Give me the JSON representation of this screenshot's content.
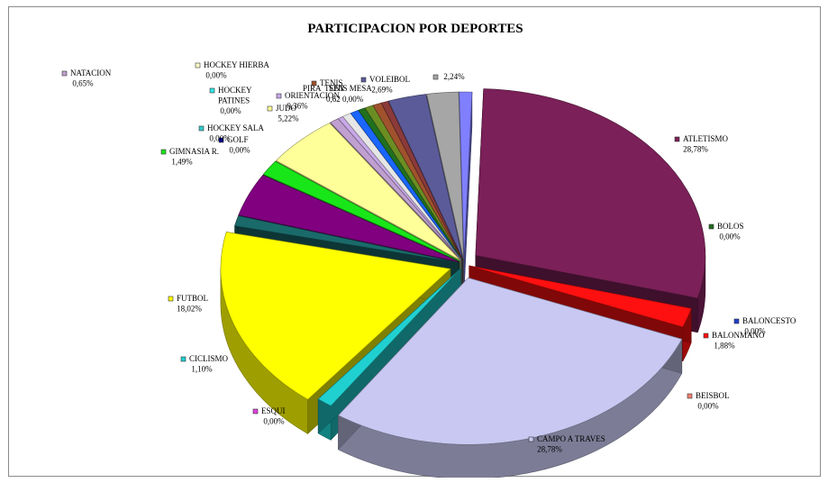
{
  "chart_data": {
    "type": "pie",
    "title": "PARTICIPACION POR DEPORTES",
    "slices": [
      {
        "label": "ATLETISMO",
        "value": 28.78,
        "value_label": "28,78%",
        "color": "#7b2058"
      },
      {
        "label": "BOLOS",
        "value": 0.0,
        "value_label": "0,00%",
        "color": "#1f6b1f"
      },
      {
        "label": "BALONCESTO",
        "value": 0.0,
        "value_label": "0,00%",
        "color": "#1f3fcc"
      },
      {
        "label": "BALONMANO",
        "value": 1.88,
        "value_label": "1,88%",
        "color": "#ff1010"
      },
      {
        "label": "BEISBOL",
        "value": 0.0,
        "value_label": "0,00%",
        "color": "#f08070"
      },
      {
        "label": "CAMPO A TRAVES",
        "value": 28.78,
        "value_label": "28,78%",
        "color": "#c8c8f2"
      },
      {
        "label": "ESQUI",
        "value": 0.0,
        "value_label": "0,00%",
        "color": "#e040e0"
      },
      {
        "label": "CICLISMO",
        "value": 1.1,
        "value_label": "1,10%",
        "color": "#20d0d0"
      },
      {
        "label": "FUTBOL",
        "value": 18.02,
        "value_label": "18,02%",
        "color": "#ffff00"
      },
      {
        "label": "",
        "value": 1.0,
        "value_label": "",
        "color": "#1a6a6a"
      },
      {
        "label": "",
        "value": 4.2,
        "value_label": "",
        "color": "#800080"
      },
      {
        "label": "GIMNASIA R.",
        "value": 1.49,
        "value_label": "1,49%",
        "color": "#19e619"
      },
      {
        "label": "GOLF",
        "value": 0.0,
        "value_label": "0,00%",
        "color": "#0000a0"
      },
      {
        "label": "HOCKEY SALA",
        "value": 0.0,
        "value_label": "0,00%",
        "color": "#33cccc"
      },
      {
        "label": "JUDO",
        "value": 5.22,
        "value_label": "5,22%",
        "color": "#ffff99"
      },
      {
        "label": "HOCKEY PATINES",
        "value": 0.0,
        "value_label": "0,00%",
        "color": "#33e6e6"
      },
      {
        "label": "HOCKEY HIERBA",
        "value": 0.0,
        "value_label": "0,00%",
        "color": "#ffffcc"
      },
      {
        "label": "NATACION",
        "value": 0.65,
        "value_label": "0,65%",
        "color": "#c0a0d0"
      },
      {
        "label": "ORIENTACION",
        "value": 0.36,
        "value_label": "0,36%",
        "color": "#c8a8e8"
      },
      {
        "label": "",
        "value": 0.62,
        "value_label": "",
        "color": "#e6e6e6"
      },
      {
        "label": "",
        "value": 0.6,
        "value_label": "",
        "color": "#1a66ff"
      },
      {
        "label": "",
        "value": 0.5,
        "value_label": "",
        "color": "#207020"
      },
      {
        "label": "",
        "value": 0.6,
        "value_label": "",
        "color": "#6b8e23"
      },
      {
        "label": "TENIS",
        "value": 0.6,
        "value_label": "",
        "color": "#a0522d"
      },
      {
        "label": "",
        "value": 0.5,
        "value_label": "",
        "color": "#8b3a3a"
      },
      {
        "label": "VOLEIBOL",
        "value": 2.69,
        "value_label": "2,69%",
        "color": "#5b5b99"
      },
      {
        "label": "",
        "value": 2.24,
        "value_label": "2,24%",
        "color": "#a6a6a6"
      },
      {
        "label": "",
        "value": 0.9,
        "value_label": "",
        "color": "#8080ff"
      }
    ],
    "overlap_labels": [
      "PIRA",
      "SEN",
      "TENIS MESA",
      "0,62",
      "0,00%"
    ]
  }
}
